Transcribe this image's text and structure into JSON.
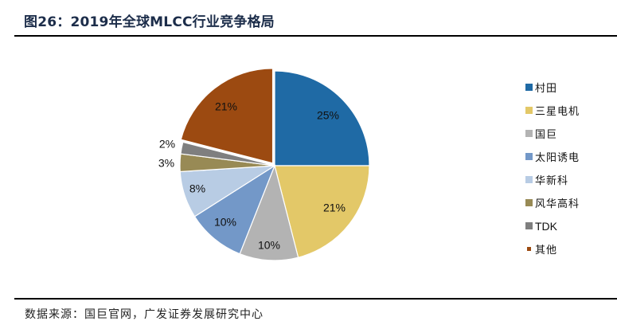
{
  "header": {
    "title": "图26：2019年全球MLCC行业竞争格局"
  },
  "footer": {
    "source": "数据来源：国巨官网，广发证券发展研究中心"
  },
  "chart_data": {
    "type": "pie",
    "title": "2019年全球MLCC行业竞争格局",
    "categories": [
      "村田",
      "三星电机",
      "国巨",
      "太阳诱电",
      "华新科",
      "风华高科",
      "TDK",
      "其他"
    ],
    "values": [
      25,
      21,
      10,
      10,
      8,
      3,
      2,
      21
    ],
    "labels": [
      "25%",
      "21%",
      "10%",
      "10%",
      "8%",
      "3%",
      "2%",
      "21%"
    ],
    "colors": [
      "#1f6aa5",
      "#e3c868",
      "#b3b3b3",
      "#7398c8",
      "#b8cce4",
      "#988a55",
      "#7f7f7f",
      "#9c4a11"
    ],
    "start_angle": "12 o'clock, clockwise",
    "legend_position": "right",
    "exploded": [
      "其他"
    ]
  },
  "legend": {
    "items": [
      {
        "label": "村田",
        "color": "#1f6aa5"
      },
      {
        "label": "三星电机",
        "color": "#e3c868"
      },
      {
        "label": "国巨",
        "color": "#b3b3b3"
      },
      {
        "label": "太阳诱电",
        "color": "#7398c8"
      },
      {
        "label": "华新科",
        "color": "#b8cce4"
      },
      {
        "label": "风华高科",
        "color": "#988a55"
      },
      {
        "label": "TDK",
        "color": "#7f7f7f"
      },
      {
        "label": "其他",
        "color": "#9c4a11"
      }
    ]
  }
}
